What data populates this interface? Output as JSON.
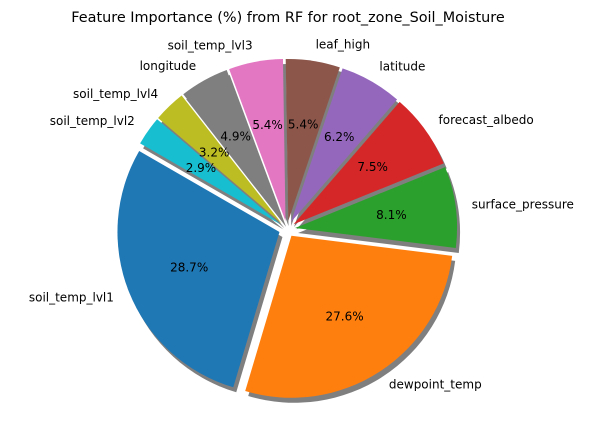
{
  "chart_data": {
    "type": "pie",
    "title": "Feature Importance (%) from RF for root_zone_Soil_Moisture",
    "slices": [
      {
        "label": "soil_temp_lvl1",
        "value": 28.7,
        "pct_label": "28.7%",
        "color": "#1f77b4"
      },
      {
        "label": "dewpoint_temp",
        "value": 27.6,
        "pct_label": "27.6%",
        "color": "#ff7f0e"
      },
      {
        "label": "surface_pressure",
        "value": 8.1,
        "pct_label": "8.1%",
        "color": "#2ca02c"
      },
      {
        "label": "forecast_albedo",
        "value": 7.5,
        "pct_label": "7.5%",
        "color": "#d62728"
      },
      {
        "label": "latitude",
        "value": 6.2,
        "pct_label": "6.2%",
        "color": "#9467bd"
      },
      {
        "label": "leaf_high",
        "value": 5.4,
        "pct_label": "5.4%",
        "color": "#8c564b"
      },
      {
        "label": "soil_temp_lvl3",
        "value": 5.4,
        "pct_label": "5.4%",
        "color": "#e377c2"
      },
      {
        "label": "longitude",
        "value": 4.9,
        "pct_label": "4.9%",
        "color": "#7f7f7f"
      },
      {
        "label": "soil_temp_lvl4",
        "value": 3.2,
        "pct_label": "3.2%",
        "color": "#bcbd22"
      },
      {
        "label": "soil_temp_lvl2",
        "value": 2.9,
        "pct_label": "2.9%",
        "color": "#17becf"
      }
    ],
    "start_angle_deg": 150,
    "direction": "counterclockwise",
    "explode": true,
    "shadow": true,
    "legend": "none"
  }
}
